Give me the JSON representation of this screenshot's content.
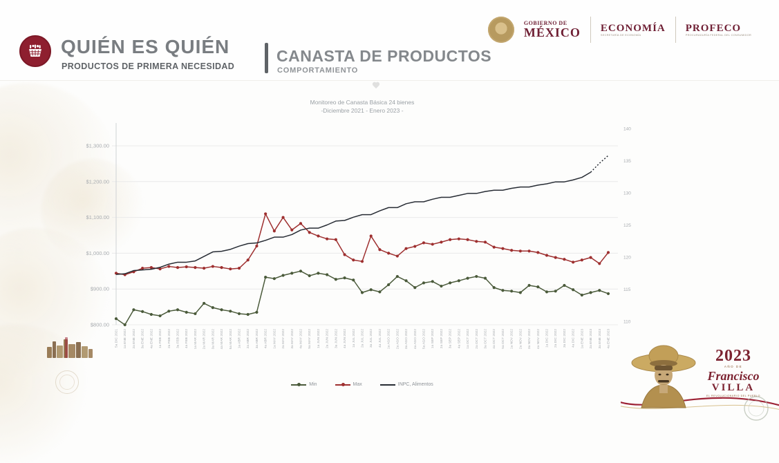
{
  "header": {
    "brand": {
      "title": "QUIÉN ES QUIÉN",
      "subtitle": "PRODUCTOS DE PRIMERA NECESIDAD",
      "logo_icon": "basket-icon",
      "logo_color": "#8e1f2f"
    },
    "section": {
      "title": "CANASTA DE PRODUCTOS",
      "subtitle": "COMPORTAMIENTO"
    },
    "government": {
      "wordmark_small": "GOBIERNO DE",
      "wordmark_large": "MÉXICO",
      "economia_label": "ECONOMÍA",
      "economia_sub": "SECRETARÍA DE ECONOMÍA",
      "profeco_label": "PROFECO",
      "profeco_sub": "PROCURADURÍA FEDERAL DEL CONSUMIDOR",
      "accent_color": "#6f1f34"
    }
  },
  "emblem": {
    "year": "2023",
    "ano_de": "AÑO DE",
    "name": "Francisco",
    "surname": "VILLA",
    "tagline": "EL REVOLUCIONARIO DEL PUEBLO",
    "accent_color": "#7c2230",
    "ribbon_color": "#9d2235"
  },
  "chart_data": {
    "type": "line",
    "title": "Monitoreo de Canasta Básica 24 bienes",
    "subtitle": "-Diciembre 2021 - Enero 2023 -",
    "grid": true,
    "legend_position": "bottom",
    "left_axis": {
      "ticks": [
        "$1,300.00",
        "$1,200.00",
        "$1,100.00",
        "$1,000.00",
        "$900.00",
        "$800.00"
      ],
      "max": 1300,
      "min": 800
    },
    "right_axis": {
      "ticks": [
        "140",
        "135",
        "130",
        "125",
        "120",
        "115",
        "110"
      ],
      "max": 140,
      "min": 110
    },
    "x_labels": [
      "5a DIC 2021",
      "1a ENE 2022",
      "2a ENE 2022",
      "3a ENE 2022",
      "4a ENE 2022",
      "1a FEB 2022",
      "2a FEB 2022",
      "3a FEB 2022",
      "4a FEB 2022",
      "1a MAR 2022",
      "2a MAR 2022",
      "3a MAR 2022",
      "4a MAR 2022",
      "5a MAR 2022",
      "1a ABR 2022",
      "2a ABR 2022",
      "3a ABR 2022",
      "4a ABR 2022",
      "1a MAY 2022",
      "2a MAY 2022",
      "3a MAY 2022",
      "4a MAY 2022",
      "5a MAY 2022",
      "1a JUN 2022",
      "2a JUN 2022",
      "3a JUN 2022",
      "4a JUN 2022",
      "1a JUL 2022",
      "2a JUL 2022",
      "3a JUL 2022",
      "4a JUL 2022",
      "1a AGO 2022",
      "2a AGO 2022",
      "3a AGO 2022",
      "4a AGO 2022",
      "5a AGO 2022",
      "1a SEP 2022",
      "2a SEP 2022",
      "3a SEP 2022",
      "4a SEP 2022",
      "1a OCT 2022",
      "2a OCT 2022",
      "3a OCT 2022",
      "4a OCT 2022",
      "5a OCT 2022",
      "1a NOV 2022",
      "2a NOV 2022",
      "3a NOV 2022",
      "4a NOV 2022",
      "1a DIC 2022",
      "2a DIC 2022",
      "3a DIC 2022",
      "4a DIC 2022",
      "1a ENE 2023",
      "2a ENE 2023",
      "3a ENE 2023",
      "4a ENE 2023"
    ],
    "series": [
      {
        "name": "Min",
        "axis": "left",
        "color": "#4a5a3a",
        "markers": true,
        "values": [
          817,
          800,
          842,
          837,
          829,
          825,
          838,
          842,
          835,
          831,
          860,
          848,
          842,
          838,
          831,
          829,
          835,
          933,
          929,
          938,
          944,
          950,
          937,
          944,
          940,
          927,
          931,
          925,
          890,
          898,
          892,
          912,
          935,
          923,
          904,
          917,
          921,
          908,
          917,
          923,
          930,
          935,
          930,
          904,
          896,
          894,
          890,
          910,
          906,
          892,
          894,
          910,
          898,
          883,
          890,
          896,
          887
        ]
      },
      {
        "name": "Max",
        "axis": "left",
        "color": "#9e2f2f",
        "markers": true,
        "values": [
          944,
          940,
          948,
          958,
          960,
          956,
          963,
          960,
          962,
          960,
          958,
          963,
          960,
          956,
          958,
          981,
          1020,
          1110,
          1062,
          1100,
          1065,
          1083,
          1058,
          1048,
          1040,
          1038,
          996,
          981,
          977,
          1048,
          1010,
          1000,
          992,
          1013,
          1019,
          1029,
          1025,
          1031,
          1038,
          1040,
          1038,
          1033,
          1031,
          1017,
          1013,
          1008,
          1006,
          1006,
          1002,
          994,
          988,
          983,
          975,
          981,
          988,
          971,
          1002
        ]
      },
      {
        "name": "INPC, Alimentos",
        "axis": "right",
        "color": "#262b33",
        "markers": false,
        "dotted_tail_segments": 2,
        "values": [
          117.3,
          117.4,
          117.9,
          118.0,
          118.1,
          118.4,
          118.9,
          119.2,
          119.2,
          119.4,
          120.1,
          120.8,
          120.9,
          121.2,
          121.7,
          122.1,
          122.2,
          122.6,
          123.1,
          123.1,
          123.5,
          124.2,
          124.5,
          124.5,
          125.0,
          125.6,
          125.7,
          126.2,
          126.6,
          126.6,
          127.2,
          127.7,
          127.7,
          128.3,
          128.6,
          128.6,
          129.0,
          129.3,
          129.3,
          129.6,
          129.9,
          129.9,
          130.2,
          130.4,
          130.4,
          130.7,
          130.9,
          130.9,
          131.2,
          131.4,
          131.7,
          131.7,
          132.0,
          132.4,
          133.2,
          134.6,
          135.8
        ]
      }
    ],
    "style": {
      "grid_color": "#eaeaea",
      "axis_color": "#cfd2d5",
      "tick_label_color": "#a7abaf",
      "title_color": "#9aa0a5"
    },
    "plot": {
      "x0": 73,
      "x_step": 12.714,
      "yl_top": 76,
      "yl_bottom": 335,
      "yr_top": 51,
      "yr_bottom": 330
    }
  }
}
